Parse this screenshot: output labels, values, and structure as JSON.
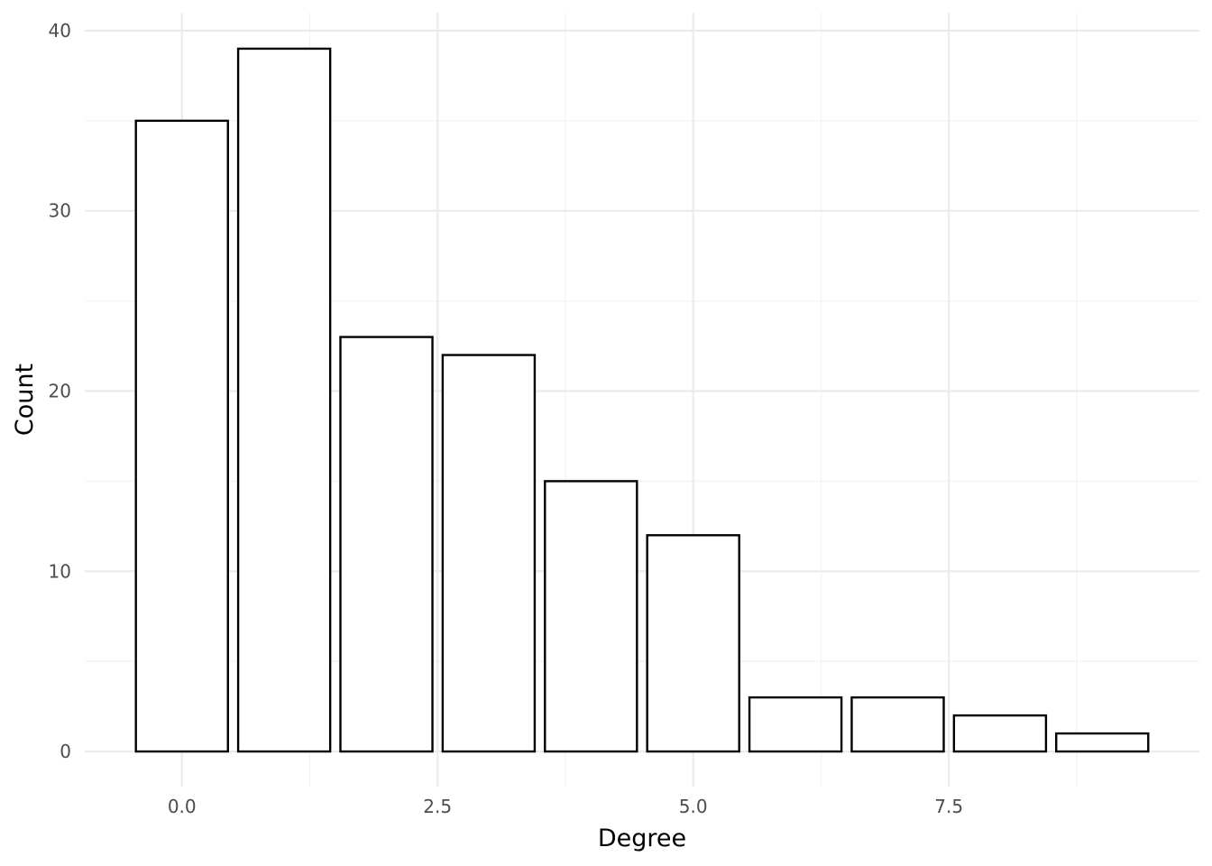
{
  "chart_data": {
    "type": "bar",
    "title": "",
    "xlabel": "Degree",
    "ylabel": "Count",
    "x": [
      0,
      1,
      2,
      3,
      4,
      5,
      6,
      7,
      8,
      9
    ],
    "values": [
      35,
      39,
      23,
      22,
      15,
      12,
      3,
      3,
      2,
      1
    ],
    "xlim": [
      -0.95,
      9.95
    ],
    "ylim": [
      -1.95,
      41
    ],
    "x_ticks": [
      0.0,
      2.5,
      5.0,
      7.5
    ],
    "x_tick_labels": [
      "0.0",
      "2.5",
      "5.0",
      "7.5"
    ],
    "y_ticks": [
      0,
      10,
      20,
      30,
      40
    ],
    "y_tick_labels": [
      "0",
      "10",
      "20",
      "30",
      "40"
    ],
    "grid": true,
    "legend": "none",
    "bar_fill": "#ffffff",
    "bar_outline": "#000000"
  }
}
